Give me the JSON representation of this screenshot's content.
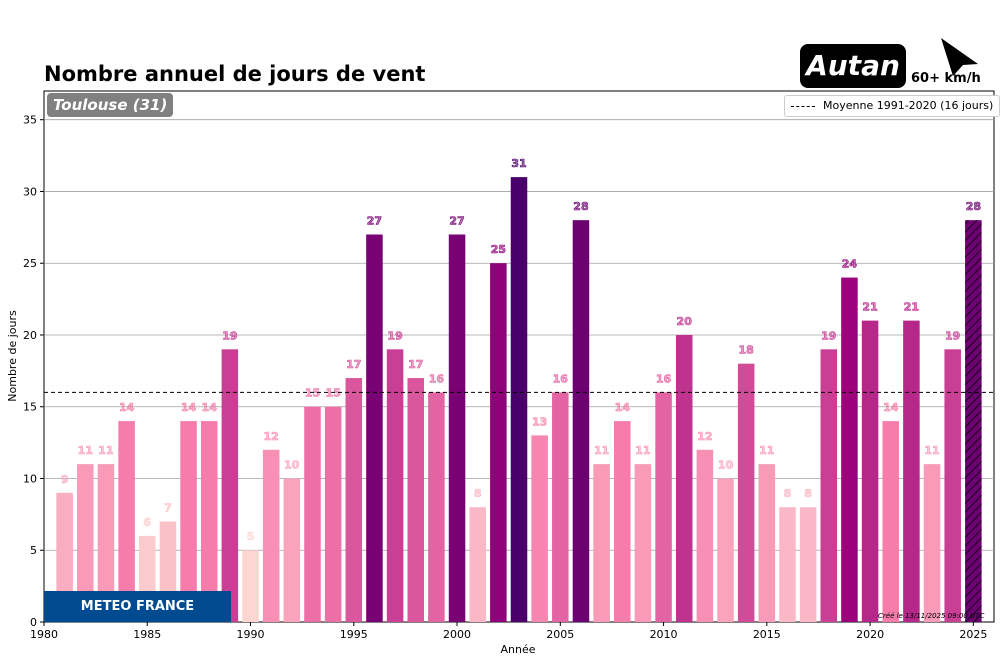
{
  "header": {
    "title": "Nombre annuel de jours de vent",
    "brand": "Autan",
    "threshold": "60+ km/h",
    "cursor_icon": "cursor-arrow-icon"
  },
  "badge": {
    "station": "Toulouse (31)"
  },
  "legend": {
    "mean_label": "Moyenne 1991-2020 (16 jours)"
  },
  "footer": {
    "logo": "METEO FRANCE",
    "created": "Créé le 13/11/2025 09:00 UTC"
  },
  "chart_data": {
    "type": "bar",
    "title": "Nombre annuel de jours de vent",
    "xlabel": "Année",
    "ylabel": "Nombre de jours",
    "xlim": [
      1980,
      2026
    ],
    "ylim": [
      0,
      37
    ],
    "xticks": [
      1980,
      1985,
      1990,
      1995,
      2000,
      2005,
      2010,
      2015,
      2020,
      2025
    ],
    "yticks": [
      0,
      5,
      10,
      15,
      20,
      25,
      30,
      35
    ],
    "grid": "horizontal",
    "mean_line": 16,
    "partial_year": 2025,
    "x": [
      1981,
      1982,
      1983,
      1984,
      1985,
      1986,
      1987,
      1988,
      1989,
      1990,
      1991,
      1992,
      1993,
      1994,
      1995,
      1996,
      1997,
      1998,
      1999,
      2000,
      2001,
      2002,
      2003,
      2004,
      2005,
      2006,
      2007,
      2008,
      2009,
      2010,
      2011,
      2012,
      2013,
      2014,
      2015,
      2016,
      2017,
      2018,
      2019,
      2020,
      2021,
      2022,
      2023,
      2024,
      2025
    ],
    "values": [
      9,
      11,
      11,
      14,
      6,
      7,
      14,
      14,
      19,
      5,
      12,
      10,
      15,
      15,
      17,
      27,
      19,
      17,
      16,
      27,
      8,
      25,
      31,
      13,
      16,
      28,
      11,
      14,
      11,
      16,
      20,
      12,
      10,
      18,
      11,
      8,
      8,
      19,
      24,
      21,
      14,
      21,
      11,
      19,
      28
    ],
    "colors": {
      "low": "#fdd5d2",
      "mid": "#f57cab",
      "high": "#9b027c",
      "max": "#49006a",
      "grid": "#a0a0a0"
    }
  }
}
